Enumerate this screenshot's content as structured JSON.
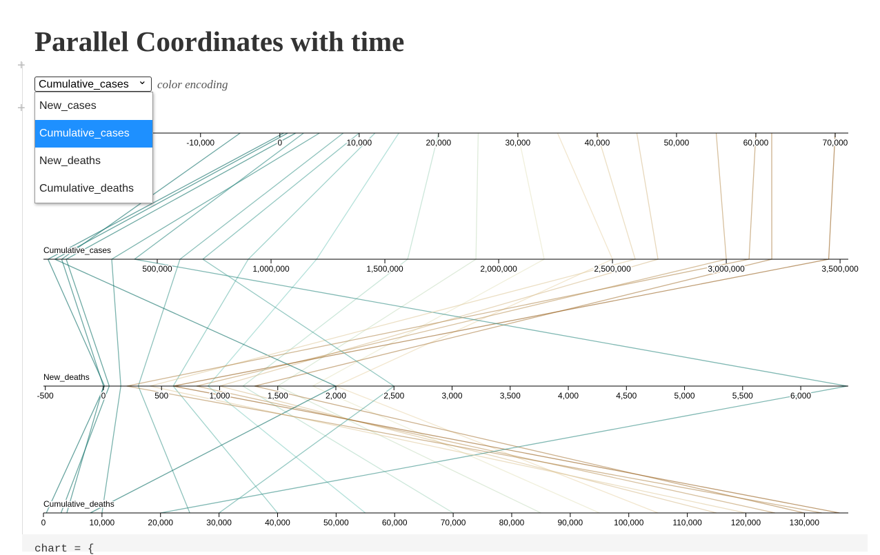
{
  "page": {
    "title": "Parallel Coordinates with time",
    "caption": "color encoding",
    "code": "chart = {"
  },
  "control": {
    "selected": "Cumulative_cases",
    "options": [
      "New_cases",
      "Cumulative_cases",
      "New_deaths",
      "Cumulative_deaths"
    ]
  },
  "chart_data": {
    "type": "parallel",
    "color_scheme": [
      "#01665e",
      "#80cdc1",
      "#f6e8c3",
      "#8c510a"
    ],
    "color_axis": 1,
    "axes": [
      {
        "name": "New_cases",
        "xlim": [
          -29800,
          71650
        ],
        "ticks": [
          {
            "value": -10000,
            "label": "-10,000"
          },
          0,
          {
            "value": 10000,
            "label": "10,000"
          },
          {
            "value": 20000,
            "label": "20,000"
          },
          {
            "value": 30000,
            "label": "30,000"
          },
          {
            "value": 40000,
            "label": "40,000"
          },
          {
            "value": 50000,
            "label": "50,000"
          },
          {
            "value": 60000,
            "label": "60,000"
          },
          {
            "value": 70000,
            "label": "70,000"
          }
        ]
      },
      {
        "name": "Cumulative_cases",
        "xlim": [
          0,
          3536000
        ],
        "ticks": [
          {
            "value": 500000,
            "label": "500,000"
          },
          {
            "value": 1000000,
            "label": "1,000,000"
          },
          {
            "value": 1500000,
            "label": "1,500,000"
          },
          {
            "value": 2000000,
            "label": "2,000,000"
          },
          {
            "value": 2500000,
            "label": "2,500,000"
          },
          {
            "value": 3000000,
            "label": "3,000,000"
          },
          {
            "value": 3500000,
            "label": "3,500,000"
          }
        ]
      },
      {
        "name": "New_deaths",
        "xlim": [
          -516,
          6409
        ],
        "ticks": [
          -500,
          0,
          500,
          {
            "value": 1000,
            "label": "1,000"
          },
          {
            "value": 1500,
            "label": "1,500"
          },
          {
            "value": 2000,
            "label": "2,000"
          },
          {
            "value": 2500,
            "label": "2,500"
          },
          {
            "value": 3000,
            "label": "3,000"
          },
          {
            "value": 3500,
            "label": "3,500"
          },
          {
            "value": 4000,
            "label": "4,000"
          },
          {
            "value": 4500,
            "label": "4,500"
          },
          {
            "value": 5000,
            "label": "5,000"
          },
          {
            "value": 5500,
            "label": "5,500"
          },
          {
            "value": 6000,
            "label": "6,000"
          }
        ]
      },
      {
        "name": "Cumulative_deaths",
        "xlim": [
          0,
          137500
        ],
        "ticks": [
          0,
          {
            "value": 10000,
            "label": "10,000"
          },
          {
            "value": 20000,
            "label": "20,000"
          },
          {
            "value": 30000,
            "label": "30,000"
          },
          {
            "value": 40000,
            "label": "40,000"
          },
          {
            "value": 50000,
            "label": "50,000"
          },
          {
            "value": 60000,
            "label": "60,000"
          },
          {
            "value": 70000,
            "label": "70,000"
          },
          {
            "value": 80000,
            "label": "80,000"
          },
          {
            "value": 90000,
            "label": "90,000"
          },
          {
            "value": 100000,
            "label": "100,000"
          },
          {
            "value": 110000,
            "label": "110,000"
          },
          {
            "value": 120000,
            "label": "120,000"
          },
          {
            "value": 130000,
            "label": "130,000"
          }
        ]
      }
    ],
    "rows": [
      [
        500,
        20000,
        10,
        500
      ],
      [
        2000,
        100000,
        50,
        3000
      ],
      [
        5000,
        300000,
        150,
        10000
      ],
      [
        8000,
        600000,
        300,
        25000
      ],
      [
        12000,
        900000,
        600,
        40000
      ],
      [
        15000,
        1200000,
        900,
        55000
      ],
      [
        20000,
        1600000,
        1200,
        70000
      ],
      [
        25000,
        1900000,
        1500,
        85000
      ],
      [
        30000,
        2200000,
        1800,
        95000
      ],
      [
        35000,
        2500000,
        2000,
        105000
      ],
      [
        45000,
        2700000,
        1000,
        115000
      ],
      [
        55000,
        3000000,
        800,
        125000
      ],
      [
        62000,
        3200000,
        1300,
        130000
      ],
      [
        70000,
        3450000,
        600,
        136000
      ],
      [
        1000,
        50000,
        2000,
        8000
      ],
      [
        -5000,
        80000,
        0,
        4000
      ],
      [
        3000,
        400000,
        6400,
        20000
      ],
      [
        40000,
        2600000,
        400,
        120000
      ],
      [
        60000,
        3100000,
        200,
        133000
      ],
      [
        10000,
        700000,
        2500,
        30000
      ]
    ]
  }
}
